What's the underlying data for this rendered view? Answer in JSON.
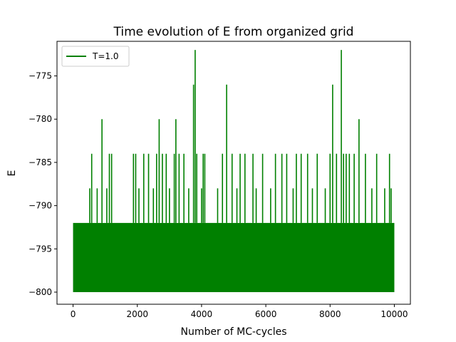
{
  "chart_data": {
    "type": "line",
    "title": "Time evolution of E from organized grid",
    "xlabel": "Number of MC-cycles",
    "ylabel": "E",
    "xlim": [
      -500,
      10500
    ],
    "ylim": [
      -801.4,
      -771.0
    ],
    "xticks": [
      0,
      2000,
      4000,
      6000,
      8000,
      10000
    ],
    "xtick_labels": [
      "0",
      "2000",
      "4000",
      "6000",
      "8000",
      "10000"
    ],
    "yticks": [
      -775,
      -780,
      -785,
      -790,
      -795,
      -800
    ],
    "ytick_labels": [
      "−775",
      "−780",
      "−785",
      "−790",
      "−795",
      "−800"
    ],
    "grid": false,
    "legend_position": "top-left",
    "series": [
      {
        "name": "T=1.0",
        "color": "#008000",
        "baseline_band": [
          -800,
          -792
        ],
        "spikes": [
          {
            "x": 520,
            "y": -788
          },
          {
            "x": 580,
            "y": -784
          },
          {
            "x": 750,
            "y": -788
          },
          {
            "x": 900,
            "y": -780
          },
          {
            "x": 1050,
            "y": -788
          },
          {
            "x": 1130,
            "y": -784
          },
          {
            "x": 1200,
            "y": -784
          },
          {
            "x": 1880,
            "y": -784
          },
          {
            "x": 1950,
            "y": -784
          },
          {
            "x": 2050,
            "y": -788
          },
          {
            "x": 2200,
            "y": -784
          },
          {
            "x": 2350,
            "y": -784
          },
          {
            "x": 2500,
            "y": -788
          },
          {
            "x": 2600,
            "y": -784
          },
          {
            "x": 2680,
            "y": -780
          },
          {
            "x": 2780,
            "y": -784
          },
          {
            "x": 2900,
            "y": -784
          },
          {
            "x": 3000,
            "y": -788
          },
          {
            "x": 3150,
            "y": -784
          },
          {
            "x": 3200,
            "y": -780
          },
          {
            "x": 3300,
            "y": -784
          },
          {
            "x": 3450,
            "y": -784
          },
          {
            "x": 3600,
            "y": -788
          },
          {
            "x": 3750,
            "y": -776
          },
          {
            "x": 3800,
            "y": -772
          },
          {
            "x": 3850,
            "y": -784
          },
          {
            "x": 4000,
            "y": -788
          },
          {
            "x": 4050,
            "y": -784
          },
          {
            "x": 4100,
            "y": -784
          },
          {
            "x": 4500,
            "y": -788
          },
          {
            "x": 4650,
            "y": -784
          },
          {
            "x": 4780,
            "y": -776
          },
          {
            "x": 4950,
            "y": -784
          },
          {
            "x": 5100,
            "y": -788
          },
          {
            "x": 5200,
            "y": -784
          },
          {
            "x": 5350,
            "y": -784
          },
          {
            "x": 5600,
            "y": -784
          },
          {
            "x": 5700,
            "y": -788
          },
          {
            "x": 5900,
            "y": -784
          },
          {
            "x": 6150,
            "y": -788
          },
          {
            "x": 6300,
            "y": -784
          },
          {
            "x": 6500,
            "y": -784
          },
          {
            "x": 6650,
            "y": -784
          },
          {
            "x": 6850,
            "y": -788
          },
          {
            "x": 6950,
            "y": -784
          },
          {
            "x": 7100,
            "y": -784
          },
          {
            "x": 7300,
            "y": -784
          },
          {
            "x": 7450,
            "y": -788
          },
          {
            "x": 7600,
            "y": -784
          },
          {
            "x": 7850,
            "y": -788
          },
          {
            "x": 8000,
            "y": -784
          },
          {
            "x": 8080,
            "y": -776
          },
          {
            "x": 8200,
            "y": -784
          },
          {
            "x": 8350,
            "y": -772
          },
          {
            "x": 8420,
            "y": -784
          },
          {
            "x": 8500,
            "y": -784
          },
          {
            "x": 8600,
            "y": -784
          },
          {
            "x": 8750,
            "y": -784
          },
          {
            "x": 8900,
            "y": -780
          },
          {
            "x": 9100,
            "y": -784
          },
          {
            "x": 9300,
            "y": -788
          },
          {
            "x": 9450,
            "y": -784
          },
          {
            "x": 9700,
            "y": -788
          },
          {
            "x": 9850,
            "y": -784
          },
          {
            "x": 9900,
            "y": -788
          }
        ]
      }
    ]
  }
}
